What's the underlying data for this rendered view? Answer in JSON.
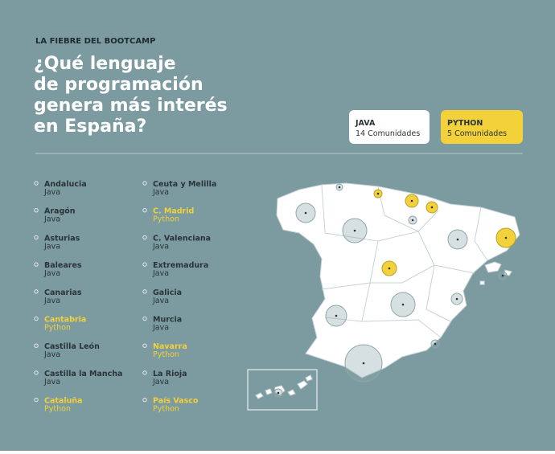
{
  "header": {
    "kicker": "LA FIEBRE DEL BOOTCAMP",
    "title": [
      "¿Qué lenguaje",
      "de programación",
      "genera más interés",
      "en España?"
    ]
  },
  "legend": [
    {
      "label": "JAVA",
      "count": "14 Comunidades"
    },
    {
      "label": "PYTHON",
      "count": "5 Comunidades"
    }
  ],
  "regions": [
    {
      "name": "Andalucia",
      "language": "Java"
    },
    {
      "name": "Aragón",
      "language": "Java"
    },
    {
      "name": "Asturias",
      "language": "Java"
    },
    {
      "name": "Baleares",
      "language": "Java"
    },
    {
      "name": "Canarias",
      "language": "Java"
    },
    {
      "name": "Cantabria",
      "language": "Python"
    },
    {
      "name": "Castilla León",
      "language": "Java"
    },
    {
      "name": "Castilla la Mancha",
      "language": "Java"
    },
    {
      "name": "Cataluña",
      "language": "Python"
    },
    {
      "name": "Ceuta y Melilla",
      "language": "Java"
    },
    {
      "name": "C. Madrid",
      "language": "Python"
    },
    {
      "name": "C. Valenciana",
      "language": "Java"
    },
    {
      "name": "Extremadura",
      "language": "Java"
    },
    {
      "name": "Galicia",
      "language": "Java"
    },
    {
      "name": "Murcia",
      "language": "Java"
    },
    {
      "name": "Navarra",
      "language": "Python"
    },
    {
      "name": "La Rioja",
      "language": "Java"
    },
    {
      "name": "País Vasco",
      "language": "Python"
    }
  ]
}
